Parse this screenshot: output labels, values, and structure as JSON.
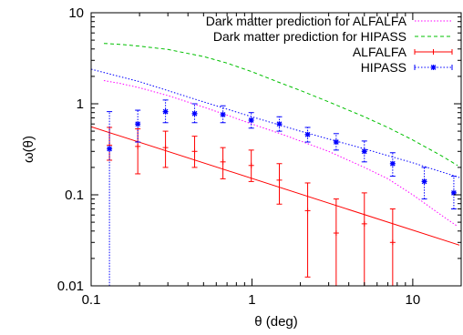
{
  "chart_data": {
    "type": "line",
    "xlabel": "θ (deg)",
    "ylabel": "ω(θ)",
    "xscale": "log",
    "yscale": "log",
    "xlim": [
      0.1,
      20
    ],
    "ylim": [
      0.01,
      10
    ],
    "xticks": [
      {
        "value": 0.1,
        "label": "0.1"
      },
      {
        "value": 1,
        "label": "1"
      },
      {
        "value": 10,
        "label": "10"
      }
    ],
    "yticks": [
      {
        "value": 0.01,
        "label": "0.01"
      },
      {
        "value": 0.1,
        "label": "0.1"
      },
      {
        "value": 1,
        "label": "1"
      },
      {
        "value": 10,
        "label": "10"
      }
    ],
    "grid": false,
    "legend_position": "top-right",
    "series": [
      {
        "name": "Dark matter prediction for ALFALFA",
        "kind": "curve",
        "style": "dotted",
        "color": "#ff00ff",
        "x": [
          0.12,
          0.15,
          0.2,
          0.3,
          0.5,
          0.7,
          1.0,
          1.5,
          2.0,
          3.0,
          5.0,
          7.0,
          10.0,
          15.0,
          19.0
        ],
        "y": [
          1.8,
          1.68,
          1.5,
          1.23,
          0.92,
          0.75,
          0.6,
          0.47,
          0.39,
          0.3,
          0.2,
          0.15,
          0.1,
          0.06,
          0.045
        ]
      },
      {
        "name": "Dark matter prediction for HIPASS",
        "kind": "curve",
        "style": "dashed",
        "color": "#00c000",
        "x": [
          0.12,
          0.15,
          0.2,
          0.3,
          0.5,
          0.7,
          1.0,
          1.5,
          2.0,
          3.0,
          5.0,
          7.0,
          10.0,
          15.0,
          19.0
        ],
        "y": [
          4.6,
          4.5,
          4.3,
          3.95,
          3.3,
          2.8,
          2.25,
          1.7,
          1.4,
          1.05,
          0.72,
          0.55,
          0.4,
          0.27,
          0.21
        ]
      },
      {
        "name": "ALFALFA",
        "kind": "points",
        "color": "#ff0000",
        "marker": "plus",
        "x": [
          0.13,
          0.195,
          0.29,
          0.44,
          0.66,
          0.99,
          1.48,
          2.22,
          3.34,
          5.0,
          7.5
        ],
        "y": [
          0.35,
          0.34,
          0.33,
          0.3,
          0.23,
          0.21,
          0.145,
          0.067,
          0.038,
          0.048,
          0.03
        ],
        "err_low": [
          0.24,
          0.17,
          0.2,
          0.2,
          0.15,
          0.14,
          0.079,
          0.0125,
          0.005,
          0.005,
          0.0065
        ],
        "err_high": [
          0.55,
          0.53,
          0.5,
          0.44,
          0.33,
          0.31,
          0.22,
          0.135,
          0.09,
          0.105,
          0.07
        ]
      },
      {
        "name": "ALFALFA",
        "kind": "fit",
        "style": "solid",
        "color": "#ff0000",
        "x": [
          0.1,
          19.5
        ],
        "y": [
          0.56,
          0.028
        ]
      },
      {
        "name": "HIPASS",
        "kind": "points",
        "color": "#0000ff",
        "marker": "star",
        "x": [
          0.13,
          0.195,
          0.29,
          0.44,
          0.66,
          0.99,
          1.48,
          2.22,
          3.34,
          5.0,
          7.5,
          11.8,
          18.0
        ],
        "y": [
          0.32,
          0.6,
          0.82,
          0.78,
          0.76,
          0.66,
          0.6,
          0.46,
          0.38,
          0.3,
          0.22,
          0.14,
          0.105
        ],
        "err_low": [
          0.005,
          0.38,
          0.62,
          0.62,
          0.62,
          0.54,
          0.5,
          0.38,
          0.31,
          0.23,
          0.16,
          0.09,
          0.07
        ],
        "err_high": [
          0.82,
          0.85,
          1.1,
          1.0,
          0.95,
          0.8,
          0.72,
          0.55,
          0.47,
          0.39,
          0.29,
          0.2,
          0.16
        ]
      },
      {
        "name": "HIPASS",
        "kind": "fit",
        "style": "dotted",
        "color": "#0000ff",
        "x": [
          0.1,
          0.2,
          0.5,
          1.0,
          2.0,
          5.0,
          10.0,
          19.5
        ],
        "y": [
          2.4,
          1.75,
          1.05,
          0.72,
          0.5,
          0.32,
          0.225,
          0.155
        ]
      }
    ],
    "legend": [
      {
        "label": "Dark matter prediction for ALFALFA",
        "color": "#ff00ff",
        "style": "dotted",
        "marker": ""
      },
      {
        "label": "Dark matter prediction for HIPASS",
        "color": "#00c000",
        "style": "dashed",
        "marker": ""
      },
      {
        "label": "ALFALFA",
        "color": "#ff0000",
        "style": "solid",
        "marker": "plus"
      },
      {
        "label": "HIPASS",
        "color": "#0000ff",
        "style": "dotted",
        "marker": "star"
      }
    ]
  }
}
